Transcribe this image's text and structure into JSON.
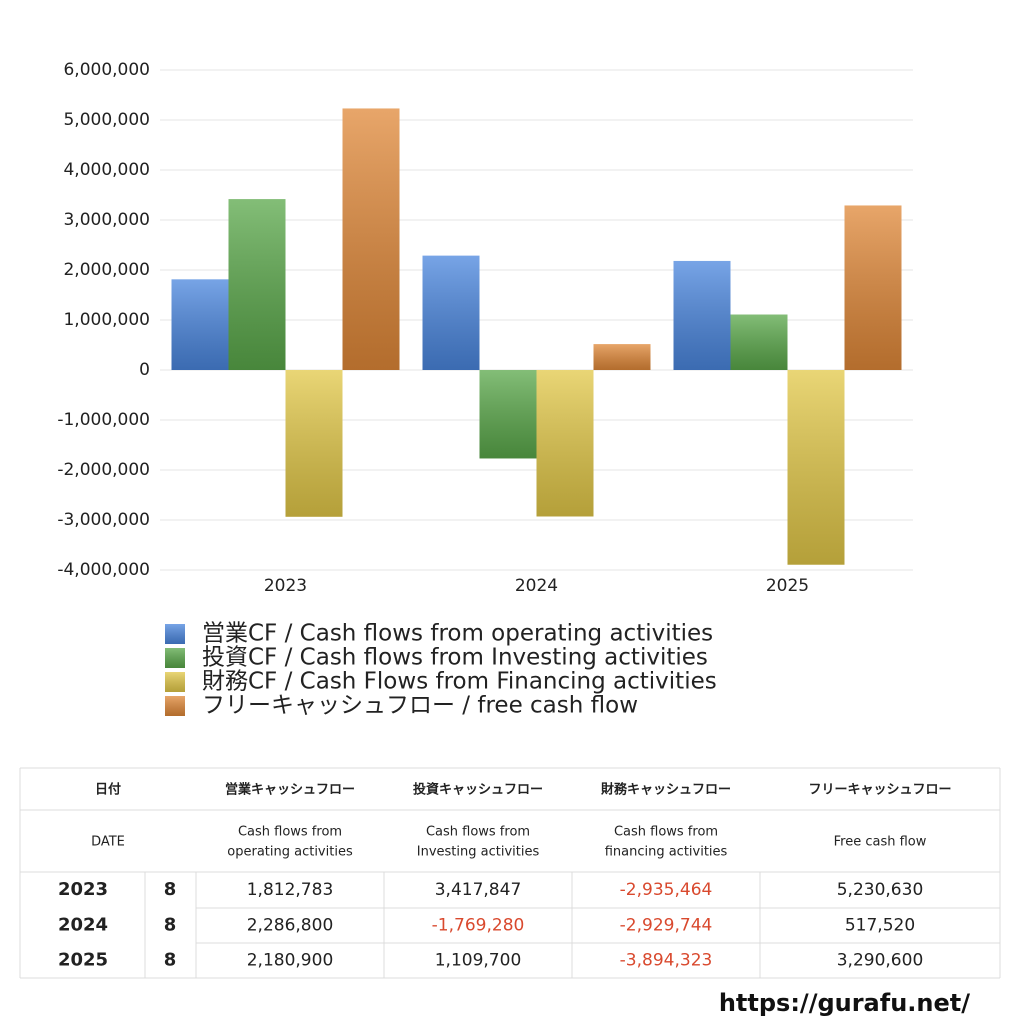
{
  "chart_data": {
    "type": "bar",
    "categories": [
      "2023",
      "2024",
      "2025"
    ],
    "series": [
      {
        "name": "営業CF / Cash flows from operating activities",
        "color": "#4a86de",
        "values": [
          1812783,
          2286800,
          2180900
        ]
      },
      {
        "name": "投資CF / Cash flows from Investing activities",
        "color": "#5aa84a",
        "values": [
          3417847,
          -1769280,
          1109700
        ]
      },
      {
        "name": "財務CF / Cash Flows from Financing activities",
        "color": "#e2c848",
        "values": [
          -2935464,
          -2929744,
          -3894323
        ]
      },
      {
        "name": "フリーキャッシュフロー / free cash flow",
        "color": "#e08838",
        "values": [
          5230630,
          517520,
          3290600
        ]
      }
    ],
    "ylim": [
      -4000000,
      6000000
    ],
    "yticks": [
      {
        "value": -4000000,
        "label": "-4,000,000"
      },
      {
        "value": -3000000,
        "label": "-3,000,000"
      },
      {
        "value": -2000000,
        "label": "-2,000,000"
      },
      {
        "value": -1000000,
        "label": "-1,000,000"
      },
      0,
      {
        "value": 1000000,
        "label": "1,000,000"
      },
      {
        "value": 2000000,
        "label": "2,000,000"
      },
      {
        "value": 3000000,
        "label": "3,000,000"
      },
      {
        "value": 4000000,
        "label": "4,000,000"
      },
      {
        "value": 5000000,
        "label": "5,000,000"
      },
      {
        "value": 6000000,
        "label": "6,000,000"
      }
    ],
    "grid": true
  },
  "table": {
    "header": [
      "日付",
      "営業キャッシュフロー",
      "投資キャッシュフロー",
      "財務キャッシュフロー",
      "フリーキャッシュフロー"
    ],
    "subheader": [
      [
        "DATE"
      ],
      [
        "Cash flows from",
        "operating activities"
      ],
      [
        "Cash flows from",
        "Investing activities"
      ],
      [
        "Cash flows from",
        "financing activities"
      ],
      [
        "Free cash flow"
      ]
    ],
    "rows": [
      [
        "2023",
        "8",
        "1,812,783",
        "3,417,847",
        "-2,935,464",
        "5,230,630"
      ],
      [
        "2024",
        "8",
        "2,286,800",
        "-1,769,280",
        "-2,929,744",
        "517,520"
      ],
      [
        "2025",
        "8",
        "2,180,900",
        "1,109,700",
        "-3,894,323",
        "3,290,600"
      ]
    ],
    "negative_color": "#d9492e"
  },
  "footer": {
    "url": "https://gurafu.net/"
  }
}
